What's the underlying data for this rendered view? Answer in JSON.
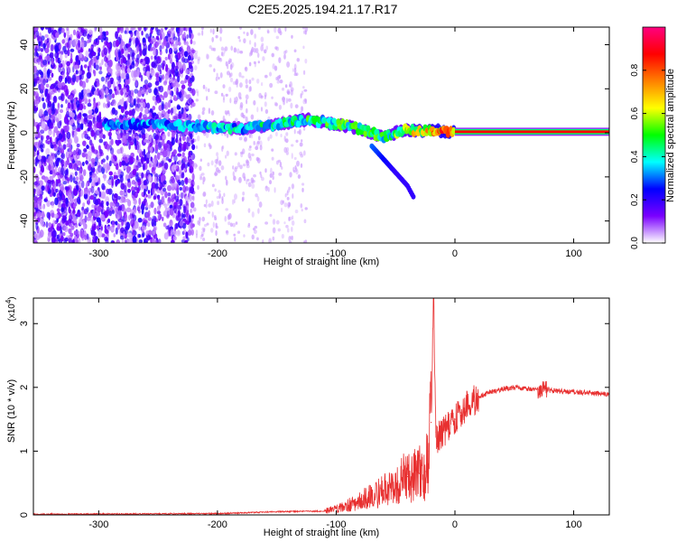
{
  "title": "C2E5.2025.194.21.17.R17",
  "chart_data": [
    {
      "type": "heatmap",
      "title": "C2E5.2025.194.21.17.R17",
      "xlabel": "Height of straight line (km)",
      "ylabel": "Frequency (Hz)",
      "xlim": [
        -355,
        130
      ],
      "ylim": [
        -50,
        48
      ],
      "xticks": [
        "-300",
        "-200",
        "-100",
        "0",
        "100"
      ],
      "xtick_values": [
        -300,
        -200,
        -100,
        0,
        100
      ],
      "yticks": [
        "40",
        "20",
        "0",
        "-20",
        "-40"
      ],
      "ytick_values": [
        40,
        20,
        0,
        -20,
        -40
      ],
      "colorbar": {
        "label": "Normalized spectral amplitude",
        "range": [
          0,
          1
        ],
        "ticks": [
          "0.0",
          "0.2",
          "0.4",
          "0.6",
          "0.8"
        ],
        "tick_values": [
          0.0,
          0.2,
          0.4,
          0.6,
          0.8
        ],
        "colormap": [
          "#ffffff",
          "#7a00ff",
          "#0000ff",
          "#00ffff",
          "#00ff00",
          "#ffff00",
          "#ff8000",
          "#ff0000",
          "#ff0080"
        ]
      },
      "main_line": {
        "x": [
          -295,
          -250,
          -220,
          -180,
          -150,
          -125,
          -100,
          -80,
          -60,
          -45,
          -30,
          -15,
          0,
          130
        ],
        "y": [
          4,
          4,
          3,
          2,
          4,
          6,
          4,
          2,
          -2,
          1,
          1,
          1,
          0.5,
          0
        ],
        "amplitude": [
          0.35,
          0.35,
          0.4,
          0.42,
          0.45,
          0.5,
          0.52,
          0.55,
          0.5,
          0.58,
          0.7,
          0.85,
          0.9,
          0.85
        ]
      },
      "branch": {
        "x": [
          -70,
          -60,
          -50,
          -40,
          -35
        ],
        "y": [
          -6,
          -12,
          -18,
          -24,
          -29
        ],
        "amplitude": [
          0.3,
          0.25,
          0.2,
          0.2,
          0.2
        ]
      },
      "noise_region": {
        "x": [
          -355,
          -220
        ],
        "amplitude": 0.2
      }
    },
    {
      "type": "line",
      "xlabel": "Height of straight line (km)",
      "ylabel": "SNR (10 * v/v)",
      "yscale_label": "(x10",
      "yscale_exp": "4",
      "ylabel_multiplier": 10000,
      "xlim": [
        -355,
        130
      ],
      "ylim": [
        0,
        3.4
      ],
      "xticks": [
        "-300",
        "-200",
        "-100",
        "0",
        "100"
      ],
      "xtick_values": [
        -300,
        -200,
        -100,
        0,
        100
      ],
      "yticks": [
        "0",
        "1",
        "2",
        "3"
      ],
      "ytick_values": [
        0,
        1,
        2,
        3
      ],
      "series_color": "#e83030",
      "x": [
        -355,
        -200,
        -150,
        -110,
        -100,
        -90,
        -80,
        -70,
        -60,
        -50,
        -45,
        -40,
        -35,
        -30,
        -25,
        -22,
        -20,
        -18,
        -16,
        -15,
        -12,
        -10,
        -5,
        0,
        5,
        10,
        20,
        30,
        40,
        50,
        60,
        70,
        75,
        80,
        90,
        100,
        110,
        120,
        130
      ],
      "values": [
        0.01,
        0.02,
        0.05,
        0.06,
        0.1,
        0.15,
        0.22,
        0.3,
        0.38,
        0.45,
        0.55,
        0.6,
        0.62,
        0.65,
        0.68,
        1.0,
        1.45,
        3.4,
        1.3,
        1.2,
        1.25,
        1.3,
        1.4,
        1.5,
        1.6,
        1.7,
        1.85,
        1.93,
        1.97,
        2.0,
        1.98,
        1.97,
        2.02,
        1.95,
        1.94,
        1.93,
        1.92,
        1.9,
        1.89
      ]
    }
  ]
}
